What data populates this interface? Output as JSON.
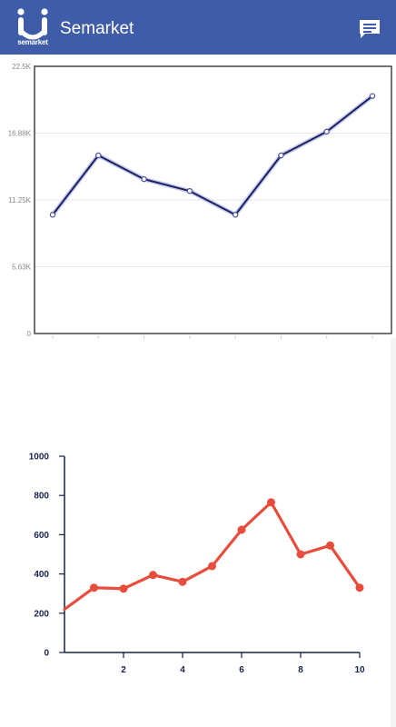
{
  "app": {
    "title": "Semarket",
    "logo_text": "semarket",
    "logo_icon": "semarket-logo-icon",
    "chat_icon": "chat-message-icon",
    "appbar_color": "#3f5ca8"
  },
  "chart_data": [
    {
      "type": "line",
      "title": "",
      "xlabel": "",
      "ylabel": "",
      "x": [
        1,
        2,
        3,
        4,
        5,
        6,
        7,
        8
      ],
      "values": [
        10000,
        15000,
        13000,
        12000,
        10000,
        15000,
        17000,
        20000
      ],
      "ylim": [
        0,
        22500
      ],
      "yticks": [
        "0",
        "5.63K",
        "11.25K",
        "16.88K",
        "22.5K"
      ],
      "ytick_values": [
        0,
        5625,
        11250,
        16875,
        22500
      ],
      "grid": true,
      "line_color": "#1b2167"
    },
    {
      "type": "line",
      "title": "",
      "xlabel": "",
      "ylabel": "",
      "x": [
        0,
        1,
        2,
        3,
        4,
        5,
        6,
        7,
        8,
        9,
        10
      ],
      "values": [
        220,
        330,
        325,
        395,
        360,
        440,
        625,
        765,
        500,
        545,
        330
      ],
      "ylim": [
        0,
        1000
      ],
      "xlim": [
        0,
        10
      ],
      "yticks": [
        "0",
        "200",
        "400",
        "600",
        "800",
        "1000"
      ],
      "ytick_values": [
        0,
        200,
        400,
        600,
        800,
        1000
      ],
      "xticks": [
        "2",
        "4",
        "6",
        "8",
        "10"
      ],
      "xtick_values": [
        2,
        4,
        6,
        8,
        10
      ],
      "grid": false,
      "line_color": "#e74c3c"
    }
  ]
}
